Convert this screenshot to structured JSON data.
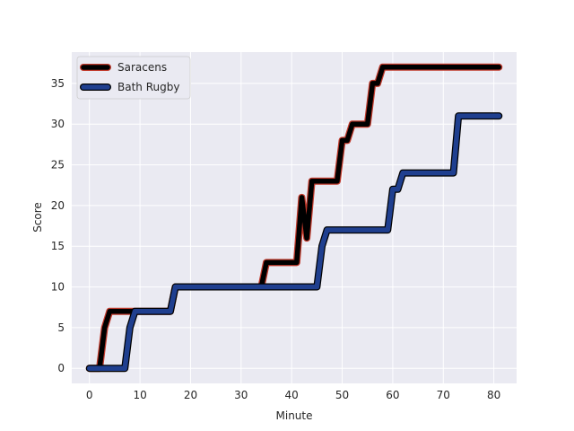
{
  "chart_data": {
    "type": "line",
    "title": "",
    "xlabel": "Minute",
    "ylabel": "Score",
    "xlim": [
      -3.5,
      84.5
    ],
    "ylim": [
      -1.85,
      38.85
    ],
    "xticks": [
      0,
      10,
      20,
      30,
      40,
      50,
      60,
      70,
      80
    ],
    "yticks": [
      0,
      5,
      10,
      15,
      20,
      25,
      30,
      35
    ],
    "grid": true,
    "legend": "top-left",
    "series": [
      {
        "name": "Saracens",
        "color": "#000000",
        "edge_color": "#c0392b",
        "x": [
          0,
          2,
          3,
          4,
          7,
          16,
          17,
          33,
          34,
          35,
          41,
          42,
          43,
          44,
          49,
          50,
          51,
          52,
          55,
          56,
          57,
          58,
          81
        ],
        "y": [
          0,
          0,
          5,
          7,
          7,
          7,
          10,
          10,
          10,
          13,
          13,
          21,
          16,
          23,
          23,
          28,
          28,
          30,
          30,
          35,
          35,
          37,
          37
        ]
      },
      {
        "name": "Bath Rugby",
        "color": "#1f3f8f",
        "edge_color": "#000000",
        "x": [
          0,
          7,
          8,
          9,
          16,
          17,
          18,
          44,
          45,
          46,
          47,
          59,
          60,
          61,
          62,
          72,
          73,
          74,
          81
        ],
        "y": [
          0,
          0,
          5,
          7,
          7,
          10,
          10,
          10,
          10,
          15,
          17,
          17,
          22,
          22,
          24,
          24,
          31,
          31,
          31
        ]
      }
    ]
  }
}
